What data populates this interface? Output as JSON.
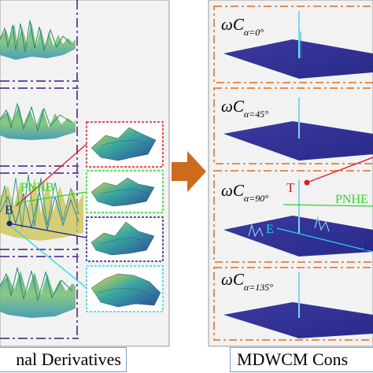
{
  "left_caption": "nal Derivatives",
  "right_caption": "MDWCM Cons",
  "panels": {
    "p0": {
      "main": "ωC",
      "sub": "α=0°"
    },
    "p45": {
      "main": "ωC",
      "sub": "α=45°"
    },
    "p90": {
      "main": "ωC",
      "sub": "α=90°"
    },
    "p135": {
      "main": "ωC",
      "sub": "α=135°"
    }
  },
  "annotations": {
    "pnhb_left": "PNHB",
    "b_left": "B",
    "t_right": "T",
    "pnhb_right": "PNHE",
    "e_right": "E",
    "e_right_edge": "E"
  },
  "colors": {
    "divider_purple": "#6b4f9a",
    "divider_orange": "#e0803a",
    "arrow": "#cd6a1e",
    "red": "#e0182a",
    "green": "#2fd42a",
    "blue": "#1a1aa0",
    "cyan": "#22d8e8"
  }
}
